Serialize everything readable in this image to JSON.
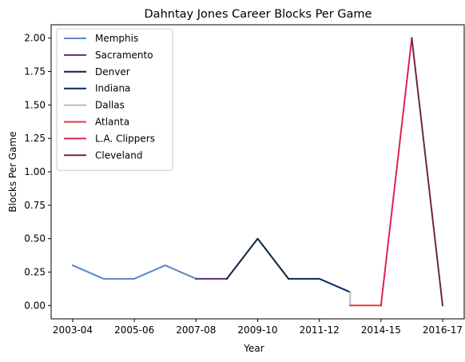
{
  "chart_data": {
    "type": "line",
    "title": "Dahntay Jones Career Blocks Per Game",
    "xlabel": "Year",
    "ylabel": "Blocks Per Game",
    "x_tick_labels": [
      "2003-04",
      "2005-06",
      "2007-08",
      "2009-10",
      "2011-12",
      "2014-15",
      "2016-17"
    ],
    "x_tick_positions": [
      0,
      2,
      4,
      6,
      8,
      10,
      12
    ],
    "xlim": [
      -0.7,
      12.7
    ],
    "ylim": [
      -0.1,
      2.1
    ],
    "y_ticks": [
      0.0,
      0.25,
      0.5,
      0.75,
      1.0,
      1.25,
      1.5,
      1.75,
      2.0
    ],
    "y_tick_labels": [
      "0.00",
      "0.25",
      "0.50",
      "0.75",
      "1.00",
      "1.25",
      "1.50",
      "1.75",
      "2.00"
    ],
    "legend_position": "upper-left",
    "series": [
      {
        "name": "Memphis",
        "color": "#5D87C1",
        "x": [
          0,
          1,
          2,
          3,
          4
        ],
        "y": [
          0.3,
          0.2,
          0.2,
          0.3,
          0.2
        ]
      },
      {
        "name": "Sacramento",
        "color": "#5A2D81",
        "x": [
          4,
          5
        ],
        "y": [
          0.2,
          0.2
        ]
      },
      {
        "name": "Denver",
        "color": "#0E2240",
        "x": [
          5,
          6,
          7
        ],
        "y": [
          0.2,
          0.5,
          0.2
        ]
      },
      {
        "name": "Indiana",
        "color": "#002D62",
        "x": [
          7,
          8,
          9
        ],
        "y": [
          0.2,
          0.2,
          0.1
        ]
      },
      {
        "name": "Dallas",
        "color": "#BBBBBB",
        "x": [
          9,
          9
        ],
        "y": [
          0.1,
          0.0
        ]
      },
      {
        "name": "Atlanta",
        "color": "#E03A3E",
        "x": [
          9,
          10
        ],
        "y": [
          0.0,
          0.0
        ]
      },
      {
        "name": "L.A. Clippers",
        "color": "#E0214C",
        "x": [
          10,
          11
        ],
        "y": [
          0.0,
          2.0
        ]
      },
      {
        "name": "Cleveland",
        "color": "#6F263D",
        "x": [
          11,
          12
        ],
        "y": [
          2.0,
          0.0
        ]
      }
    ]
  }
}
